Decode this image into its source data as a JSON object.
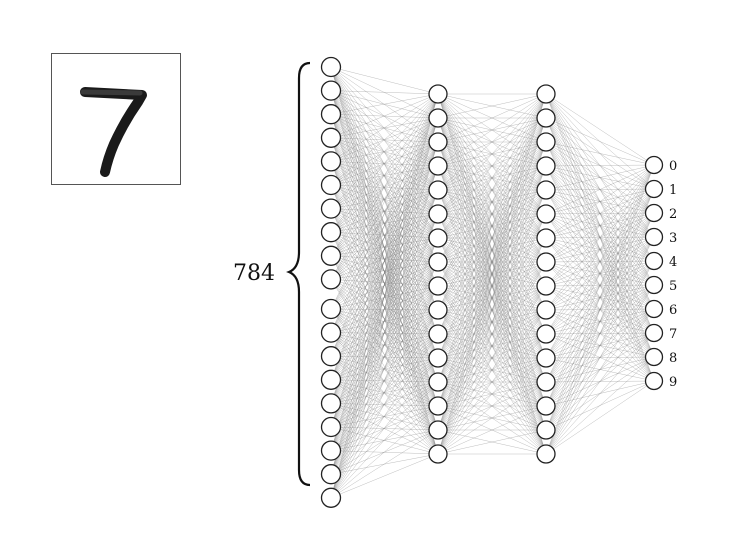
{
  "input_image": {
    "depicted_digit": "7"
  },
  "network": {
    "input_count_label": "784",
    "input_visible_nodes": 19,
    "hidden_layers": [
      {
        "nodes": 16
      },
      {
        "nodes": 16
      }
    ],
    "output_labels": [
      "0",
      "1",
      "2",
      "3",
      "4",
      "5",
      "6",
      "7",
      "8",
      "9"
    ]
  },
  "colors": {
    "node_stroke": "#222222",
    "node_fill": "#ffffff",
    "edge": "#7a7a7a",
    "brace": "#111111"
  }
}
